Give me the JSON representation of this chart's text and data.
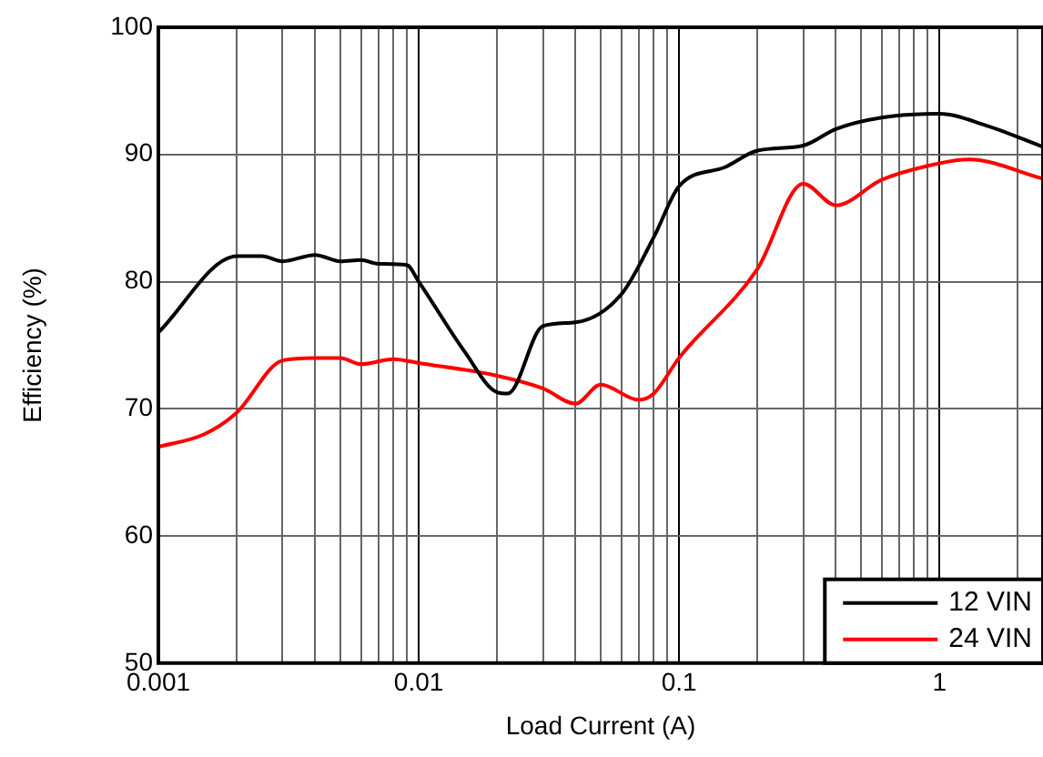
{
  "chart_data": {
    "type": "line",
    "xlabel": "Load Current (A)",
    "ylabel": "Efficiency (%)",
    "log": "x",
    "xlim": [
      0.001,
      2.5
    ],
    "xticks": [
      0.001,
      {
        "value": 0.002,
        "label": null
      },
      {
        "value": 0.003,
        "label": null
      },
      {
        "value": 0.004,
        "label": null
      },
      {
        "value": 0.005,
        "label": null
      },
      {
        "value": 0.006,
        "label": null
      },
      {
        "value": 0.007,
        "label": null
      },
      {
        "value": 0.008,
        "label": null
      },
      {
        "value": 0.009,
        "label": null
      },
      0.01,
      {
        "value": 0.02,
        "label": null
      },
      {
        "value": 0.03,
        "label": null
      },
      {
        "value": 0.04,
        "label": null
      },
      {
        "value": 0.05,
        "label": null
      },
      {
        "value": 0.06,
        "label": null
      },
      {
        "value": 0.07,
        "label": null
      },
      {
        "value": 0.08,
        "label": null
      },
      {
        "value": 0.09,
        "label": null
      },
      0.1,
      {
        "value": 0.2,
        "label": null
      },
      {
        "value": 0.3,
        "label": null
      },
      {
        "value": 0.4,
        "label": null
      },
      {
        "value": 0.5,
        "label": null
      },
      {
        "value": 0.6,
        "label": null
      },
      {
        "value": 0.7,
        "label": null
      },
      {
        "value": 0.8,
        "label": null
      },
      {
        "value": 0.9,
        "label": null
      },
      1,
      {
        "value": 2,
        "label": null
      }
    ],
    "ylim": [
      50,
      100
    ],
    "yticks": [
      50,
      60,
      70,
      80,
      90,
      100
    ],
    "grid": true,
    "legend": "bottom right",
    "marker": "none",
    "line_style": "solid",
    "series": [
      {
        "name": "12 VIN",
        "color": "#000000",
        "x": [
          0.001,
          0.002,
          0.0025,
          0.003,
          0.004,
          0.005,
          0.006,
          0.007,
          0.009,
          0.01,
          0.015,
          0.02,
          0.022,
          0.03,
          0.04,
          0.06,
          0.08,
          0.1,
          0.15,
          0.2,
          0.3,
          0.4,
          0.6,
          1,
          1.5,
          2.5
        ],
        "values": [
          76,
          82,
          82,
          81.6,
          82.1,
          81.6,
          81.7,
          81.4,
          81.3,
          80,
          74.5,
          71.3,
          71.2,
          76.5,
          76.8,
          79,
          83.5,
          87.5,
          89,
          90.3,
          90.7,
          92,
          92.9,
          93.2,
          92.3,
          90.6
        ]
      },
      {
        "name": "24 VIN",
        "color": "#ff0000",
        "x": [
          0.001,
          0.0015,
          0.002,
          0.003,
          0.004,
          0.005,
          0.006,
          0.008,
          0.01,
          0.02,
          0.03,
          0.04,
          0.05,
          0.07,
          0.08,
          0.1,
          0.2,
          0.3,
          0.4,
          0.6,
          1,
          1.3,
          2.5
        ],
        "values": [
          67,
          68,
          69.7,
          73.8,
          74,
          74,
          73.5,
          73.9,
          73.6,
          72.6,
          71.6,
          70.4,
          71.9,
          70.7,
          71.2,
          74,
          81,
          87.7,
          86,
          88,
          89.3,
          89.6,
          88.1
        ]
      }
    ]
  }
}
